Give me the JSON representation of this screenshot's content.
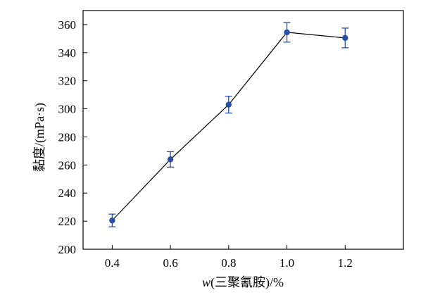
{
  "chart_data": {
    "type": "line",
    "xlabel_italic": "w",
    "xlabel_rest": "(三聚氰胺)/%",
    "ylabel": "黏度/(mPa·s)",
    "x": [
      0.4,
      0.6,
      0.8,
      1.0,
      1.2
    ],
    "x_tick_labels": [
      "0.4",
      "0.6",
      "0.8",
      "1.0",
      "1.2"
    ],
    "xlim": [
      0.3,
      1.4
    ],
    "ylim": [
      200,
      370
    ],
    "y_ticks": [
      200,
      220,
      240,
      260,
      280,
      300,
      320,
      340,
      360
    ],
    "grid": false,
    "series": [
      {
        "values": [
          220.5,
          264,
          303,
          354.5,
          350.5
        ],
        "errors": [
          4.5,
          5.5,
          6,
          7,
          7
        ],
        "marker_color": "#2a4ea8",
        "line_color": "#000000"
      }
    ]
  }
}
